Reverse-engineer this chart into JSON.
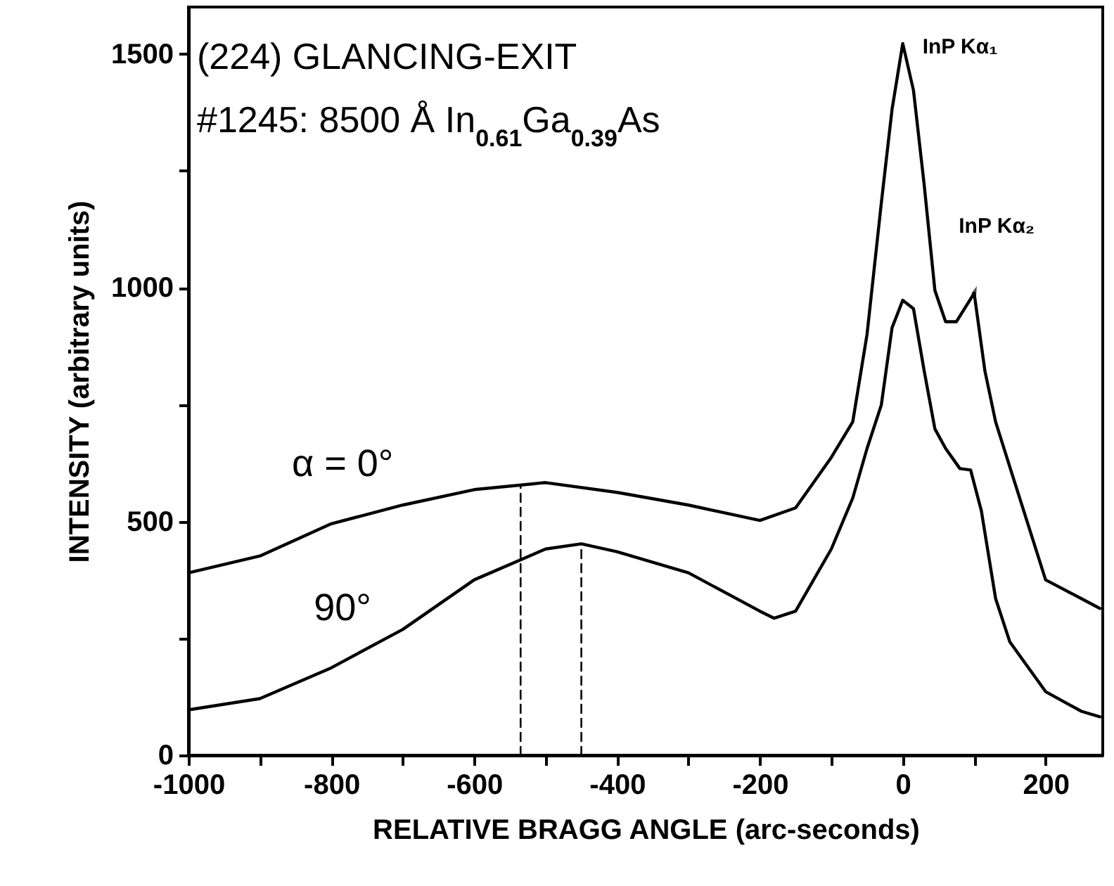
{
  "chart_data": {
    "type": "line",
    "xlabel": "RELATIVE BRAGG ANGLE (arc-seconds)",
    "ylabel": "INTENSITY (arbitrary units)",
    "xlim": [
      -1000,
      280
    ],
    "ylim": [
      0,
      1600
    ],
    "xticks": [
      -1000,
      {
        "value": -900,
        "label": null
      },
      -800,
      {
        "value": -700,
        "label": null
      },
      -600,
      {
        "value": -500,
        "label": null
      },
      -400,
      {
        "value": -300,
        "label": null
      },
      -200,
      {
        "value": -100,
        "label": null
      },
      0,
      {
        "value": 100,
        "label": null
      },
      200
    ],
    "yticks": [
      0,
      {
        "value": 250,
        "label": null
      },
      500,
      {
        "value": 750,
        "label": null
      },
      1000,
      {
        "value": 1250,
        "label": null
      },
      1500
    ],
    "grid": false,
    "marker": "none",
    "series": [
      {
        "name": "α = 0°",
        "color": "#000000",
        "x": [
          -1000,
          -900,
          -800,
          -700,
          -600,
          -500,
          -400,
          -300,
          -200,
          -150,
          -100,
          -70,
          -50,
          -30,
          -15,
          0,
          15,
          30,
          45,
          60,
          75,
          100,
          115,
          130,
          150,
          200,
          250,
          276
        ],
        "values": [
          390,
          426,
          495,
          535,
          568,
          583,
          562,
          535,
          502,
          529,
          637,
          713,
          900,
          1181,
          1381,
          1522,
          1422,
          1220,
          994,
          927,
          927,
          988,
          822,
          713,
          616,
          375,
          335,
          314
        ]
      },
      {
        "name": "90°",
        "color": "#000000",
        "x": [
          -1000,
          -900,
          -800,
          -700,
          -600,
          -500,
          -450,
          -400,
          -300,
          -200,
          -180,
          -150,
          -100,
          -70,
          -50,
          -30,
          -15,
          0,
          15,
          30,
          45,
          60,
          80,
          95,
          110,
          130,
          150,
          200,
          250,
          276
        ],
        "values": [
          97,
          121,
          187,
          269,
          375,
          441,
          452,
          435,
          390,
          308,
          293,
          308,
          441,
          550,
          656,
          749,
          914,
          973,
          955,
          822,
          698,
          656,
          613,
          610,
          523,
          335,
          242,
          136,
          94,
          82
        ]
      },
      {
        "color": "#000000",
        "line_style": "dashed",
        "x": [
          -535,
          -535
        ],
        "values": [
          0,
          575
        ]
      },
      {
        "color": "#000000",
        "line_style": "dashed",
        "x": [
          -450,
          -450
        ],
        "values": [
          0,
          452
        ]
      }
    ],
    "annotations": [
      "(224) GLANCING-EXIT",
      "#1245: 8500 Å In$_{0.61}$Ga$_{0.39}$As",
      {
        "text": "InP Kα₁",
        "x": 0,
        "y": 1522
      },
      {
        "text": "InP Kα₂",
        "x": 100,
        "y": 988
      }
    ]
  }
}
